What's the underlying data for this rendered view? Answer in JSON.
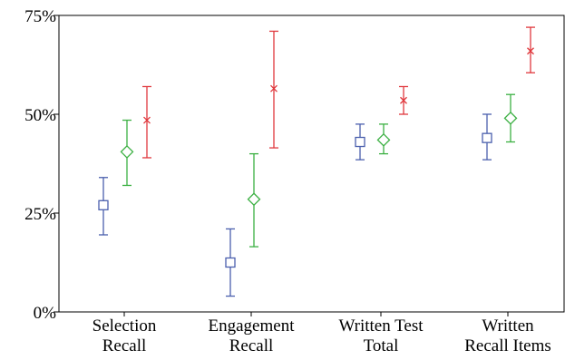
{
  "chart_data": {
    "type": "scatter",
    "categories": [
      [
        "Selection",
        "Recall"
      ],
      [
        "Engagement",
        "Recall"
      ],
      [
        "Written Test",
        "Total"
      ],
      [
        "Written",
        "Recall Items"
      ]
    ],
    "ylim": [
      0,
      75
    ],
    "yticks": [
      0,
      25,
      50,
      75
    ],
    "ytick_labels": [
      "0%",
      "25%",
      "50%",
      "75%"
    ],
    "series": [
      {
        "marker": "square",
        "color": "#4a5fad",
        "values": [
          {
            "mean": 27,
            "low": 19.5,
            "high": 34
          },
          {
            "mean": 12.5,
            "low": 4,
            "high": 21
          },
          {
            "mean": 43,
            "low": 38.5,
            "high": 47.5
          },
          {
            "mean": 44,
            "low": 38.5,
            "high": 50
          }
        ]
      },
      {
        "marker": "diamond",
        "color": "#3cb043",
        "values": [
          {
            "mean": 40.5,
            "low": 32,
            "high": 48.5
          },
          {
            "mean": 28.5,
            "low": 16.5,
            "high": 40
          },
          {
            "mean": 43.5,
            "low": 40,
            "high": 47.5
          },
          {
            "mean": 49,
            "low": 43,
            "high": 55
          }
        ]
      },
      {
        "marker": "x",
        "color": "#e0393e",
        "values": [
          {
            "mean": 48.5,
            "low": 39,
            "high": 57
          },
          {
            "mean": 56.5,
            "low": 41.5,
            "high": 71
          },
          {
            "mean": 53.5,
            "low": 50,
            "high": 57
          },
          {
            "mean": 66,
            "low": 60.5,
            "high": 72
          }
        ]
      }
    ],
    "grid": false,
    "legend": "none"
  }
}
